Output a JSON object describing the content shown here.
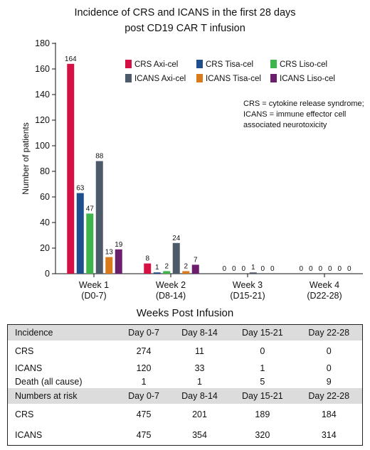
{
  "chart_data": {
    "type": "bar",
    "title_line1": "Incidence of CRS and ICANS in the first 28 days",
    "title_line2": "post CD19 CAR T infusion",
    "xlabel": "Weeks Post Infusion",
    "ylabel": "Number of patients",
    "ylim": [
      0,
      180
    ],
    "yticks": [
      0,
      20,
      40,
      60,
      80,
      100,
      120,
      140,
      160,
      180
    ],
    "categories": [
      {
        "line1": "Week 1",
        "line2": "(D0-7)"
      },
      {
        "line1": "Week 2",
        "line2": "(D8-14)"
      },
      {
        "line1": "Week 3",
        "line2": "(D15-21)"
      },
      {
        "line1": "Week 4",
        "line2": "(D22-28)"
      }
    ],
    "series": [
      {
        "name": "CRS Axi-cel",
        "color": "#d31144",
        "values": [
          164,
          8,
          0,
          0
        ]
      },
      {
        "name": "CRS Tisa-cel",
        "color": "#1f4e8c",
        "values": [
          63,
          1,
          0,
          0
        ]
      },
      {
        "name": "CRS Liso-cel",
        "color": "#3db54a",
        "values": [
          47,
          2,
          0,
          0
        ]
      },
      {
        "name": "ICANS Axi-cel",
        "color": "#4c5a6a",
        "values": [
          88,
          24,
          1,
          0
        ]
      },
      {
        "name": "ICANS Tisa-cel",
        "color": "#d97b1c",
        "values": [
          13,
          2,
          0,
          0
        ]
      },
      {
        "name": "ICANS Liso-cel",
        "color": "#6a1e6b",
        "values": [
          19,
          7,
          0,
          0
        ]
      }
    ],
    "annotation": "CRS = cytokine release syndrome; ICANS = immune effector cell associated neurotoxicity",
    "legend_position": "top-right"
  },
  "table": {
    "incidence_header": [
      "Incidence",
      "Day 0-7",
      "Day 8-14",
      "Day 15-21",
      "Day 22-28"
    ],
    "incidence_rows": [
      [
        "CRS",
        "274",
        "11",
        "0",
        "0"
      ],
      [
        "ICANS",
        "120",
        "33",
        "1",
        "0"
      ],
      [
        "Death (all cause)",
        "1",
        "1",
        "5",
        "9"
      ]
    ],
    "risk_header": [
      "Numbers at risk",
      "Day 0-7",
      "Day 8-14",
      "Day 15-21",
      "Day 22-28"
    ],
    "risk_rows": [
      [
        "CRS",
        "475",
        "201",
        "189",
        "184"
      ],
      [
        "ICANS",
        "475",
        "354",
        "320",
        "314"
      ]
    ]
  }
}
